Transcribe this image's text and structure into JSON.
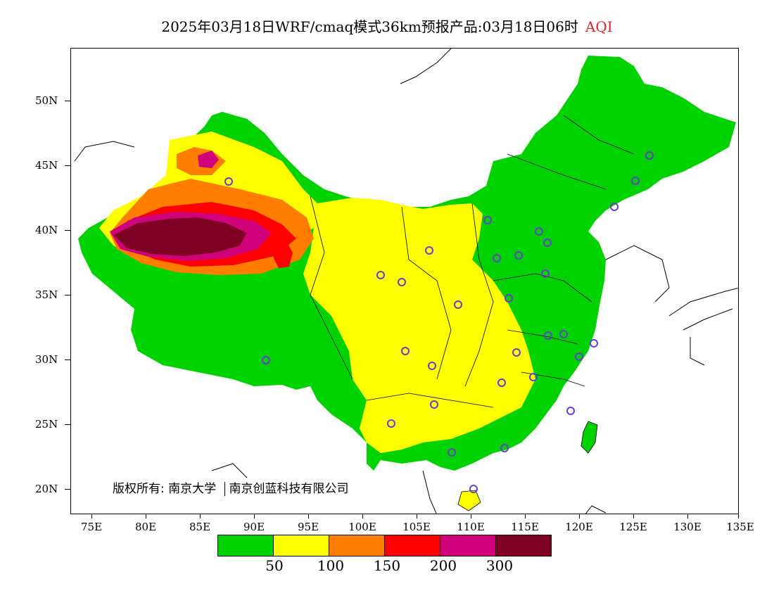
{
  "title": {
    "main": "2025年03月18日WRF/cmaq模式36km预报产品:03月18日06时",
    "variable": "AQI"
  },
  "y_axis": [
    "50N",
    "45N",
    "40N",
    "35N",
    "30N",
    "25N",
    "20N"
  ],
  "x_axis": [
    "75E",
    "80E",
    "85E",
    "90E",
    "95E",
    "100E",
    "105E",
    "110E",
    "115E",
    "120E",
    "125E",
    "130E",
    "135E"
  ],
  "copyright": {
    "prefix": "版权所有:",
    "org1": "南京大学",
    "org2": "南京创蓝科技有限公司"
  },
  "legend": {
    "colors": [
      "#00d200",
      "#ffff00",
      "#ff7e00",
      "#ff0000",
      "#d0007b",
      "#7e0023"
    ],
    "labels": [
      "50",
      "100",
      "150",
      "200",
      "300"
    ]
  },
  "colors": {
    "title_accent": "#e0202a",
    "station_marker": "#6a3ecc"
  }
}
